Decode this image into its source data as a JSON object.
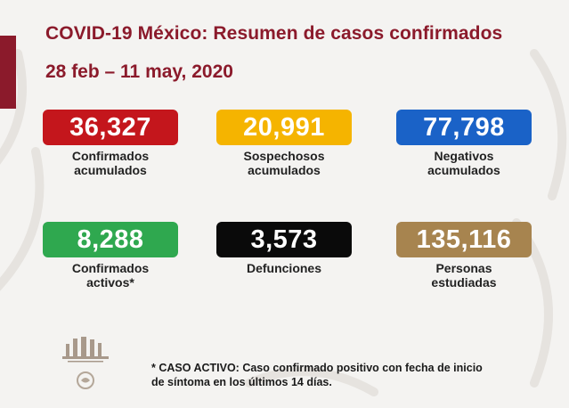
{
  "title": "COVID-19 México: Resumen de casos confirmados",
  "date_range": "28 feb – 11 may, 2020",
  "stats": [
    {
      "value": "36,327",
      "label": "Confirmados\nacumulados",
      "color": "#c4161c"
    },
    {
      "value": "20,991",
      "label": "Sospechosos\nacumulados",
      "color": "#f5b400"
    },
    {
      "value": "77,798",
      "label": "Negativos\nacumulados",
      "color": "#1a62c7"
    },
    {
      "value": "8,288",
      "label": "Confirmados\nactivos*",
      "color": "#2fa84f"
    },
    {
      "value": "3,573",
      "label": "Defunciones",
      "color": "#0a0a0a"
    },
    {
      "value": "135,116",
      "label": "Personas\nestudiadas",
      "color": "#a7844f"
    }
  ],
  "footnote": "* CASO ACTIVO: Caso confirmado positivo con fecha de inicio\nde síntoma en los últimos 14 días.",
  "colors": {
    "accent": "#8b1a2b",
    "background": "#f4f3f1"
  },
  "icons": {
    "logo": "government-seal-logo"
  }
}
